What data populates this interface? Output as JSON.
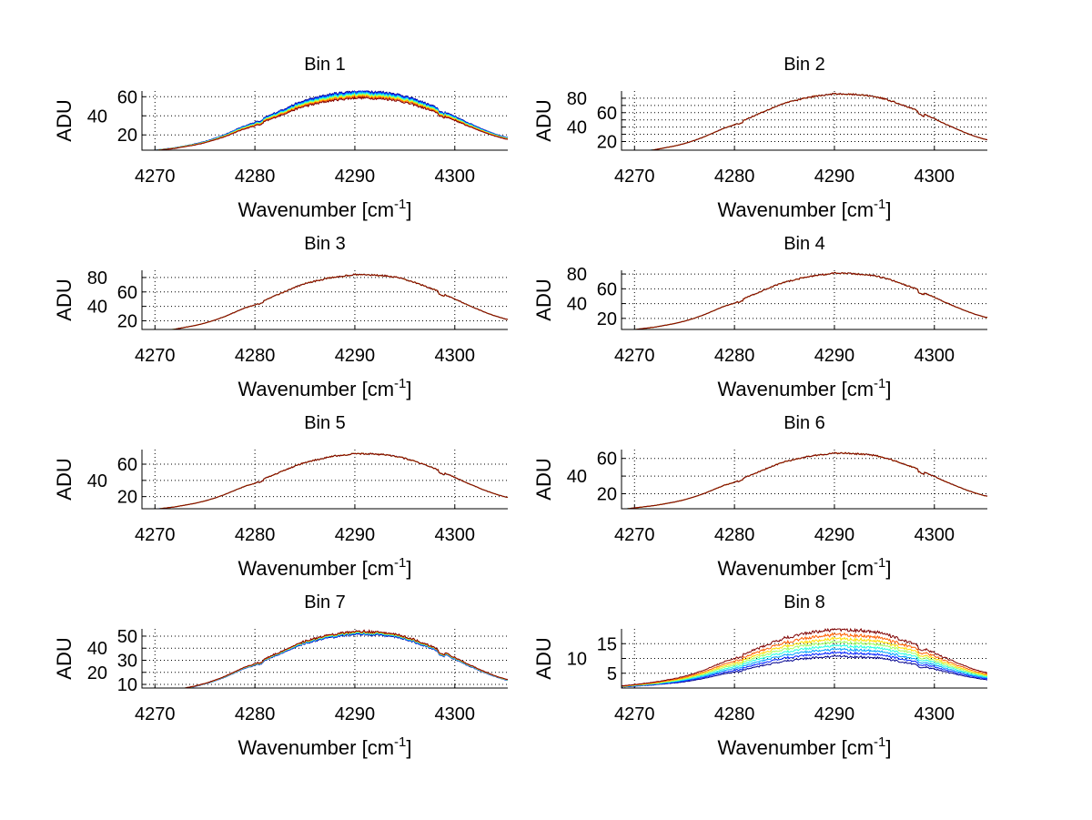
{
  "chart_data": [
    {
      "type": "line",
      "title": "Bin 1",
      "ylabel": "ADU",
      "xlabel_parts": [
        "Wavenumber [cm",
        "-1",
        "]"
      ],
      "xlim": [
        4268.7,
        4305.3
      ],
      "ylim": [
        4,
        66
      ],
      "xticks": [
        4270,
        4280,
        4290,
        4300
      ],
      "yticks": [
        20,
        40,
        60
      ],
      "peak": 66,
      "series_scale": [
        1.0,
        0.985,
        0.97,
        0.955,
        0.94,
        0.925,
        0.91,
        0.89
      ],
      "noise": 0.02
    },
    {
      "type": "line",
      "title": "Bin 2",
      "ylabel": "ADU",
      "xlabel_parts": [
        "Wavenumber [cm",
        "-1",
        "]"
      ],
      "xlim": [
        4268.7,
        4305.3
      ],
      "ylim": [
        8,
        90
      ],
      "xticks": [
        4270,
        4280,
        4290,
        4300
      ],
      "yticks": [
        20,
        30,
        40,
        50,
        60,
        70,
        80
      ],
      "ytick_labels": [
        "20",
        "",
        "40",
        "",
        "60",
        "",
        "80"
      ],
      "peak": 86,
      "series_scale": [
        1.0,
        1.0,
        1.0,
        1.0,
        1.0,
        1.0,
        1.0,
        1.0
      ],
      "noise": 0.012
    },
    {
      "type": "line",
      "title": "Bin 3",
      "ylabel": "ADU",
      "xlabel_parts": [
        "Wavenumber [cm",
        "-1",
        "]"
      ],
      "xlim": [
        4268.7,
        4305.3
      ],
      "ylim": [
        8,
        90
      ],
      "xticks": [
        4270,
        4280,
        4290,
        4300
      ],
      "yticks": [
        20,
        40,
        60,
        80
      ],
      "peak": 84,
      "series_scale": [
        1.0,
        1.0,
        1.0,
        1.0,
        1.0,
        1.0,
        1.0,
        1.0
      ],
      "noise": 0.012
    },
    {
      "type": "line",
      "title": "Bin 4",
      "ylabel": "ADU",
      "xlabel_parts": [
        "Wavenumber [cm",
        "-1",
        "]"
      ],
      "xlim": [
        4268.7,
        4305.3
      ],
      "ylim": [
        5,
        85
      ],
      "xticks": [
        4270,
        4280,
        4290,
        4300
      ],
      "yticks": [
        20,
        40,
        60,
        80
      ],
      "peak": 81,
      "series_scale": [
        1.0,
        1.0,
        1.0,
        1.0,
        1.0,
        1.0,
        1.0,
        1.0
      ],
      "noise": 0.012
    },
    {
      "type": "line",
      "title": "Bin 5",
      "ylabel": "ADU",
      "xlabel_parts": [
        "Wavenumber [cm",
        "-1",
        "]"
      ],
      "xlim": [
        4268.7,
        4305.3
      ],
      "ylim": [
        5,
        78
      ],
      "xticks": [
        4270,
        4280,
        4290,
        4300
      ],
      "yticks": [
        20,
        40,
        60
      ],
      "peak": 73,
      "series_scale": [
        1.0,
        1.0,
        1.0,
        1.0,
        1.0,
        1.0,
        1.0,
        1.0
      ],
      "noise": 0.012
    },
    {
      "type": "line",
      "title": "Bin 6",
      "ylabel": "ADU",
      "xlabel_parts": [
        "Wavenumber [cm",
        "-1",
        "]"
      ],
      "xlim": [
        4268.7,
        4305.3
      ],
      "ylim": [
        3,
        70
      ],
      "xticks": [
        4270,
        4280,
        4290,
        4300
      ],
      "yticks": [
        20,
        40,
        60
      ],
      "peak": 66,
      "series_scale": [
        1.0,
        1.0,
        1.0,
        1.0,
        1.0,
        1.0,
        1.0,
        1.0
      ],
      "noise": 0.012
    },
    {
      "type": "line",
      "title": "Bin 7",
      "ylabel": "ADU",
      "xlabel_parts": [
        "Wavenumber [cm",
        "-1",
        "]"
      ],
      "xlim": [
        4268.7,
        4305.3
      ],
      "ylim": [
        7,
        56
      ],
      "xticks": [
        4270,
        4280,
        4290,
        4300
      ],
      "yticks": [
        10,
        20,
        30,
        40,
        50
      ],
      "peak": 54,
      "series_scale": [
        0.955,
        0.962,
        0.97,
        0.977,
        0.984,
        0.99,
        0.995,
        1.0
      ],
      "noise": 0.018
    },
    {
      "type": "line",
      "title": "Bin 8",
      "ylabel": "ADU",
      "xlabel_parts": [
        "Wavenumber [cm",
        "-1",
        "]"
      ],
      "xlim": [
        4268.7,
        4305.3
      ],
      "ylim": [
        0,
        20
      ],
      "xticks": [
        4270,
        4280,
        4290,
        4300
      ],
      "yticks": [
        5,
        10,
        15
      ],
      "peak": 19.8,
      "series_scale": [
        0.54,
        0.6,
        0.66,
        0.72,
        0.78,
        0.84,
        0.91,
        1.0
      ],
      "noise": 0.03
    }
  ],
  "profile": {
    "x": [
      4269,
      4270,
      4271,
      4272,
      4273,
      4274,
      4275,
      4276,
      4277,
      4278,
      4279,
      4280,
      4281,
      4282,
      4283,
      4284,
      4285,
      4286,
      4287,
      4288,
      4289,
      4290,
      4291,
      4292,
      4293,
      4294,
      4295,
      4296,
      4297,
      4298,
      4299,
      4300,
      4301,
      4302,
      4303,
      4304,
      4305,
      4306
    ],
    "relative": [
      0.04,
      0.06,
      0.08,
      0.1,
      0.13,
      0.16,
      0.2,
      0.25,
      0.31,
      0.38,
      0.45,
      0.5,
      0.58,
      0.65,
      0.72,
      0.79,
      0.85,
      0.89,
      0.93,
      0.96,
      0.98,
      1.0,
      1.0,
      0.99,
      0.98,
      0.96,
      0.92,
      0.87,
      0.81,
      0.75,
      0.67,
      0.6,
      0.52,
      0.45,
      0.38,
      0.32,
      0.27,
      0.24
    ]
  },
  "series_colors": [
    "#00008f",
    "#0020ff",
    "#00a0ff",
    "#20ffdf",
    "#a0ff60",
    "#ffdf00",
    "#ff6000",
    "#800000"
  ]
}
